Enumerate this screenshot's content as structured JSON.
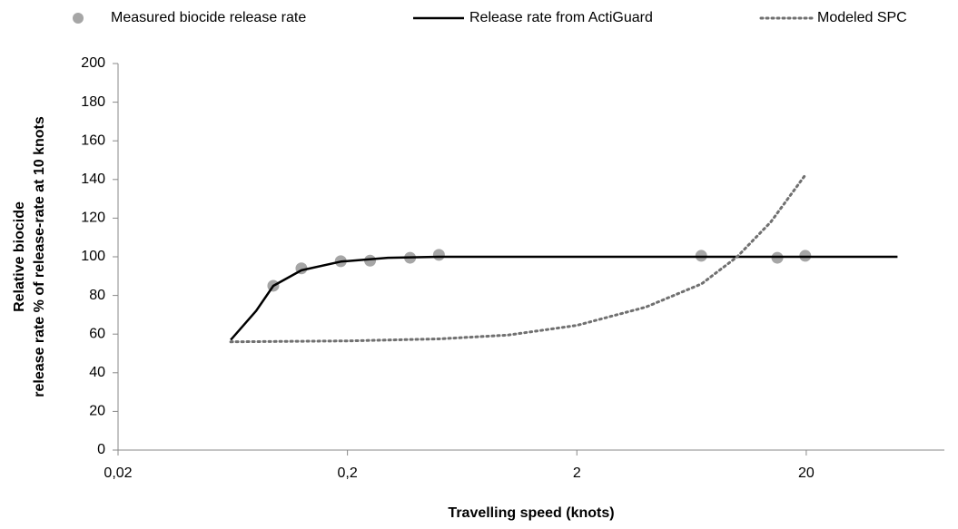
{
  "chart_data": {
    "type": "line",
    "xlabel": "Travelling speed (knots)",
    "ylabel": [
      "Relative biocide",
      "release rate % of release-rate at 10 knots"
    ],
    "xscale": "log",
    "xlim": [
      0.02,
      80
    ],
    "xticks": [
      {
        "value": 0.02,
        "label": "0,02"
      },
      {
        "value": 0.2,
        "label": "0,2"
      },
      {
        "value": 2,
        "label": "2"
      },
      {
        "value": 20,
        "label": "20"
      }
    ],
    "ylim": [
      0,
      200
    ],
    "yticks": [
      0,
      20,
      40,
      60,
      80,
      100,
      120,
      140,
      160,
      180,
      200
    ],
    "legend": "top",
    "series": [
      {
        "name": "Measured biocide release rate",
        "color": "#a6a6a6",
        "style": "marker",
        "x": [
          0.095,
          0.126,
          0.187,
          0.251,
          0.375,
          0.501,
          6.97,
          14.96,
          19.8
        ],
        "values": [
          85,
          94,
          97.7,
          98,
          99.5,
          101,
          100.5,
          99.5,
          100.5
        ]
      },
      {
        "name": "Release rate from ActiGuard",
        "color": "#000000",
        "style": "solid",
        "x": [
          0.062,
          0.08,
          0.095,
          0.126,
          0.187,
          0.3,
          0.5,
          50
        ],
        "values": [
          57,
          72,
          85,
          93,
          97.5,
          99.5,
          100,
          100
        ]
      },
      {
        "name": "Modeled SPC",
        "color": "#707070",
        "style": "dotted",
        "x": [
          0.062,
          0.2,
          0.5,
          1,
          2,
          4,
          7,
          10,
          14,
          20
        ],
        "values": [
          56,
          56.5,
          57.5,
          59.5,
          64.5,
          74,
          86,
          100,
          118,
          143
        ]
      }
    ]
  }
}
